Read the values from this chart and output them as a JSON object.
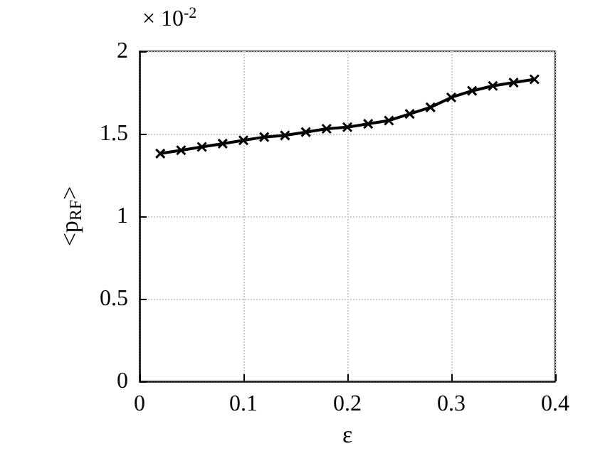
{
  "chart_data": {
    "type": "line",
    "xlabel": "ε",
    "ylabel": "<p$_{RF}$>",
    "annotations": [
      "× 10$^{-2}$"
    ],
    "x": [
      0.02,
      0.04,
      0.06,
      0.08,
      0.1,
      0.12,
      0.14,
      0.16,
      0.18,
      0.2,
      0.22,
      0.24,
      0.26,
      0.28,
      0.3,
      0.32,
      0.34,
      0.36,
      0.38
    ],
    "series": [
      {
        "color": "#000000",
        "values": [
          1.38,
          1.4,
          1.42,
          1.44,
          1.46,
          1.48,
          1.49,
          1.51,
          1.53,
          1.54,
          1.56,
          1.58,
          1.62,
          1.66,
          1.72,
          1.76,
          1.79,
          1.81,
          1.83
        ]
      }
    ],
    "xlim": [
      0,
      0.4
    ],
    "xticks": [
      0,
      0.1,
      0.2,
      0.3,
      0.4
    ],
    "ylim": [
      0,
      2
    ],
    "yticks": [
      0,
      0.5,
      1,
      1.5,
      2
    ],
    "grid": true,
    "marker": "cross",
    "line_style": "solid"
  }
}
